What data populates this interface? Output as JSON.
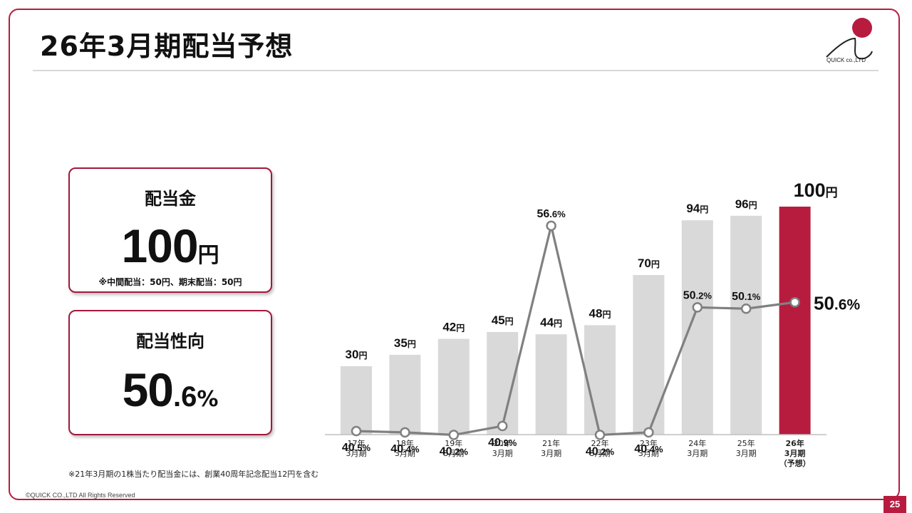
{
  "slide": {
    "title": "26年3月期配当予想",
    "logo_text": "QUICK co.,LTD",
    "footnote": "※21年3月期の1株当たり配当金には、創業40周年記念配当12円を含む",
    "copyright": "©QUICK CO.,LTD All Rights Reserved",
    "page_number": "25"
  },
  "cards": {
    "dividend": {
      "label": "配当金",
      "value": "100",
      "unit": "円",
      "note": "※中間配当：50円、期末配当：50円"
    },
    "payout": {
      "label": "配当性向",
      "value_int": "50",
      "value_dec": ".6",
      "unit": "%"
    }
  },
  "colors": {
    "accent": "#b71c3f",
    "bar": "#d9d9d9",
    "line": "#808080"
  },
  "chart_data": {
    "type": "bar",
    "categories": [
      [
        "17年",
        "3月期"
      ],
      [
        "18年",
        "3月期"
      ],
      [
        "19年",
        "3月期"
      ],
      [
        "20年",
        "3月期"
      ],
      [
        "21年",
        "3月期"
      ],
      [
        "22年",
        "3月期"
      ],
      [
        "23年",
        "3月期"
      ],
      [
        "24年",
        "3月期"
      ],
      [
        "25年",
        "3月期"
      ],
      [
        "26年",
        "3月期",
        "（予想）"
      ]
    ],
    "highlight_index": 9,
    "ylim": [
      0,
      100
    ],
    "series": [
      {
        "values": [
          30,
          35,
          42,
          45,
          44,
          48,
          70,
          94,
          96,
          100
        ],
        "value_unit": "円",
        "labels": [
          {
            "n": "30",
            "u": "円"
          },
          {
            "n": "35",
            "u": "円"
          },
          {
            "n": "42",
            "u": "円"
          },
          {
            "n": "45",
            "u": "円"
          },
          {
            "n": "44",
            "u": "円"
          },
          {
            "n": "48",
            "u": "円"
          },
          {
            "n": "70",
            "u": "円"
          },
          {
            "n": "94",
            "u": "円"
          },
          {
            "n": "96",
            "u": "円"
          },
          {
            "n": "100",
            "u": "円"
          }
        ]
      },
      {
        "type": "line",
        "values": [
          40.5,
          40.4,
          40.2,
          40.9,
          56.6,
          40.2,
          40.4,
          50.2,
          50.1,
          50.6
        ],
        "labels": [
          {
            "a": "40",
            "b": ".5",
            "c": "%"
          },
          {
            "a": "40",
            "b": ".4",
            "c": "%"
          },
          {
            "a": "40",
            "b": ".2",
            "c": "%"
          },
          {
            "a": "40",
            "b": ".9",
            "c": "%"
          },
          {
            "a": "56",
            "b": ".6",
            "c": "%"
          },
          {
            "a": "40",
            "b": ".2",
            "c": "%"
          },
          {
            "a": "40",
            "b": ".4",
            "c": "%"
          },
          {
            "a": "50",
            "b": ".2",
            "c": "%"
          },
          {
            "a": "50",
            "b": ".1",
            "c": "%"
          },
          {
            "a": "50",
            "b": ".6",
            "c": "%"
          }
        ]
      }
    ]
  }
}
